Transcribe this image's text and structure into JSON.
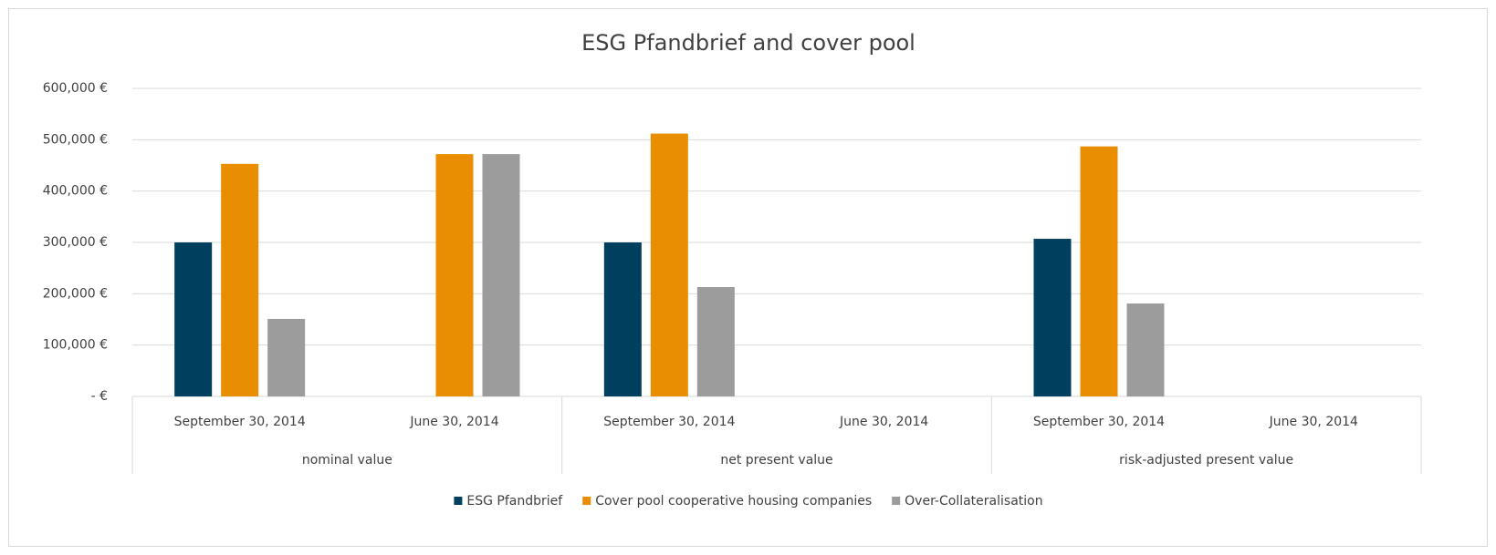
{
  "chart_data": {
    "type": "bar",
    "title": "ESG Pfandbrief and cover pool",
    "categories": [
      "September 30, 2014",
      "June 30, 2014",
      "September 30, 2014",
      "June 30, 2014",
      "September 30, 2014",
      "June 30, 2014"
    ],
    "category_groups": [
      "nominal value",
      "net present value",
      "risk-adjusted present value"
    ],
    "series": [
      {
        "name": "ESG Pfandbrief",
        "color": "#00405e",
        "values": [
          300000,
          null,
          300000,
          null,
          307000,
          null
        ]
      },
      {
        "name": "Cover pool cooperative housing companies",
        "color": "#e88e00",
        "values": [
          453000,
          472000,
          512000,
          null,
          487000,
          null
        ]
      },
      {
        "name": "Over-Collateralisation",
        "color": "#9c9c9c",
        "values": [
          151000,
          472000,
          213000,
          null,
          181000,
          null
        ]
      }
    ],
    "ylim": [
      0,
      600000
    ],
    "yticks": [
      {
        "value": 0,
        "label": "-  €"
      },
      {
        "value": 100000,
        "label": "100,000 €"
      },
      {
        "value": 200000,
        "label": "200,000 €"
      },
      {
        "value": 300000,
        "label": "300,000 €"
      },
      {
        "value": 400000,
        "label": "400,000 €"
      },
      {
        "value": 500000,
        "label": "500,000 €"
      },
      {
        "value": 600000,
        "label": "600,000 €"
      }
    ],
    "grid": true,
    "legend": "bottom"
  }
}
